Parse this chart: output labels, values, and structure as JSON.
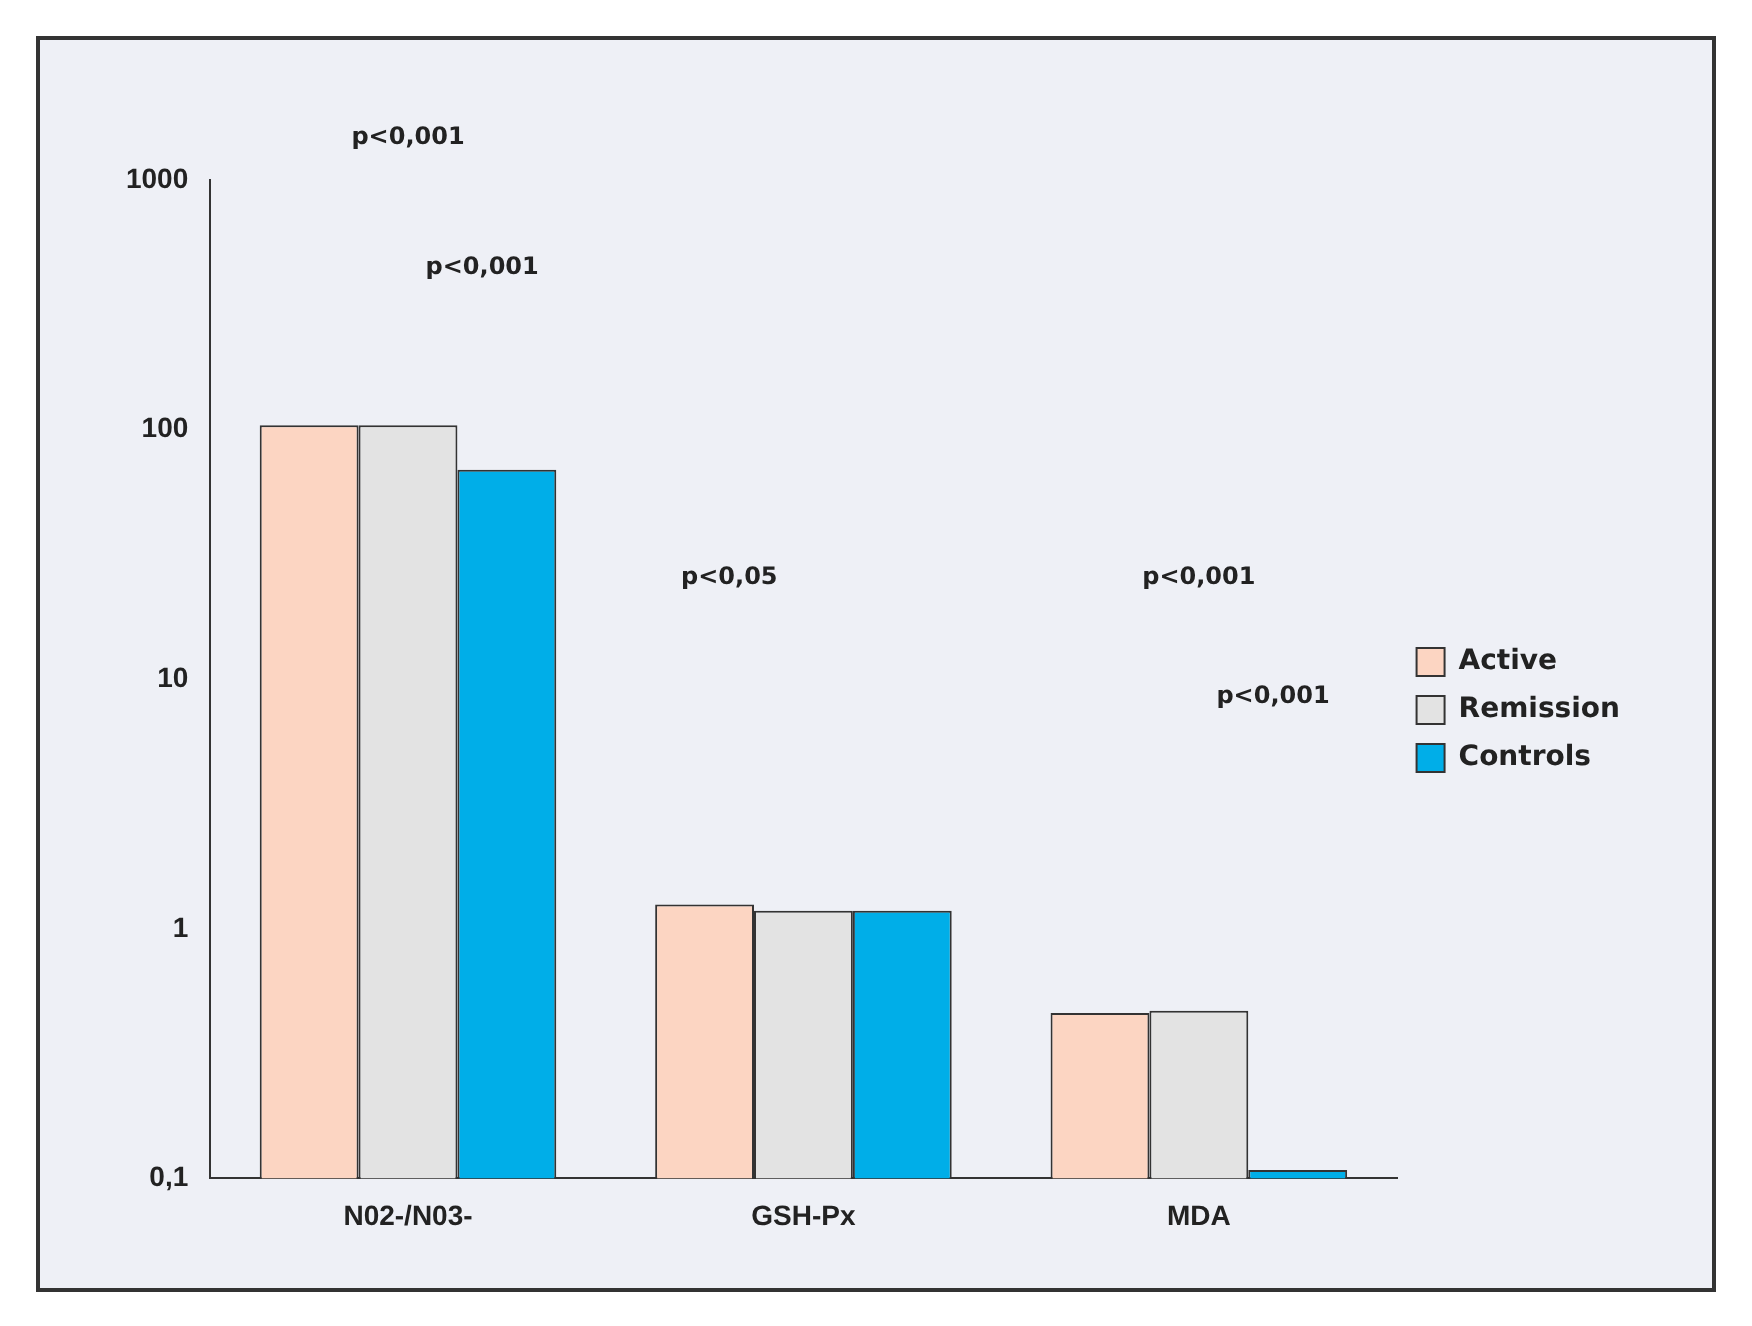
{
  "chart_data": {
    "type": "bar",
    "categories": [
      "N02-/N03-",
      "GSH-Px",
      "MDA"
    ],
    "series": [
      {
        "name": "Active",
        "color": "#fcd5c2",
        "values": [
          104,
          1.25,
          0.46
        ]
      },
      {
        "name": "Remission",
        "color": "#e3e3e3",
        "values": [
          104,
          1.18,
          0.47
        ]
      },
      {
        "name": "Controls",
        "color": "#00aee8",
        "values": [
          69,
          1.18,
          0.108
        ]
      }
    ],
    "log": "y",
    "ylim": [
      0.1,
      1000
    ],
    "yticks": [
      {
        "value": 0.1,
        "label": "0,1"
      },
      1,
      10,
      100,
      1000
    ],
    "grid": false,
    "legend": "right",
    "annotations": [
      "p<0,001",
      "p<0,001",
      "p<0,05",
      "p<0,001",
      "p<0,001"
    ]
  }
}
